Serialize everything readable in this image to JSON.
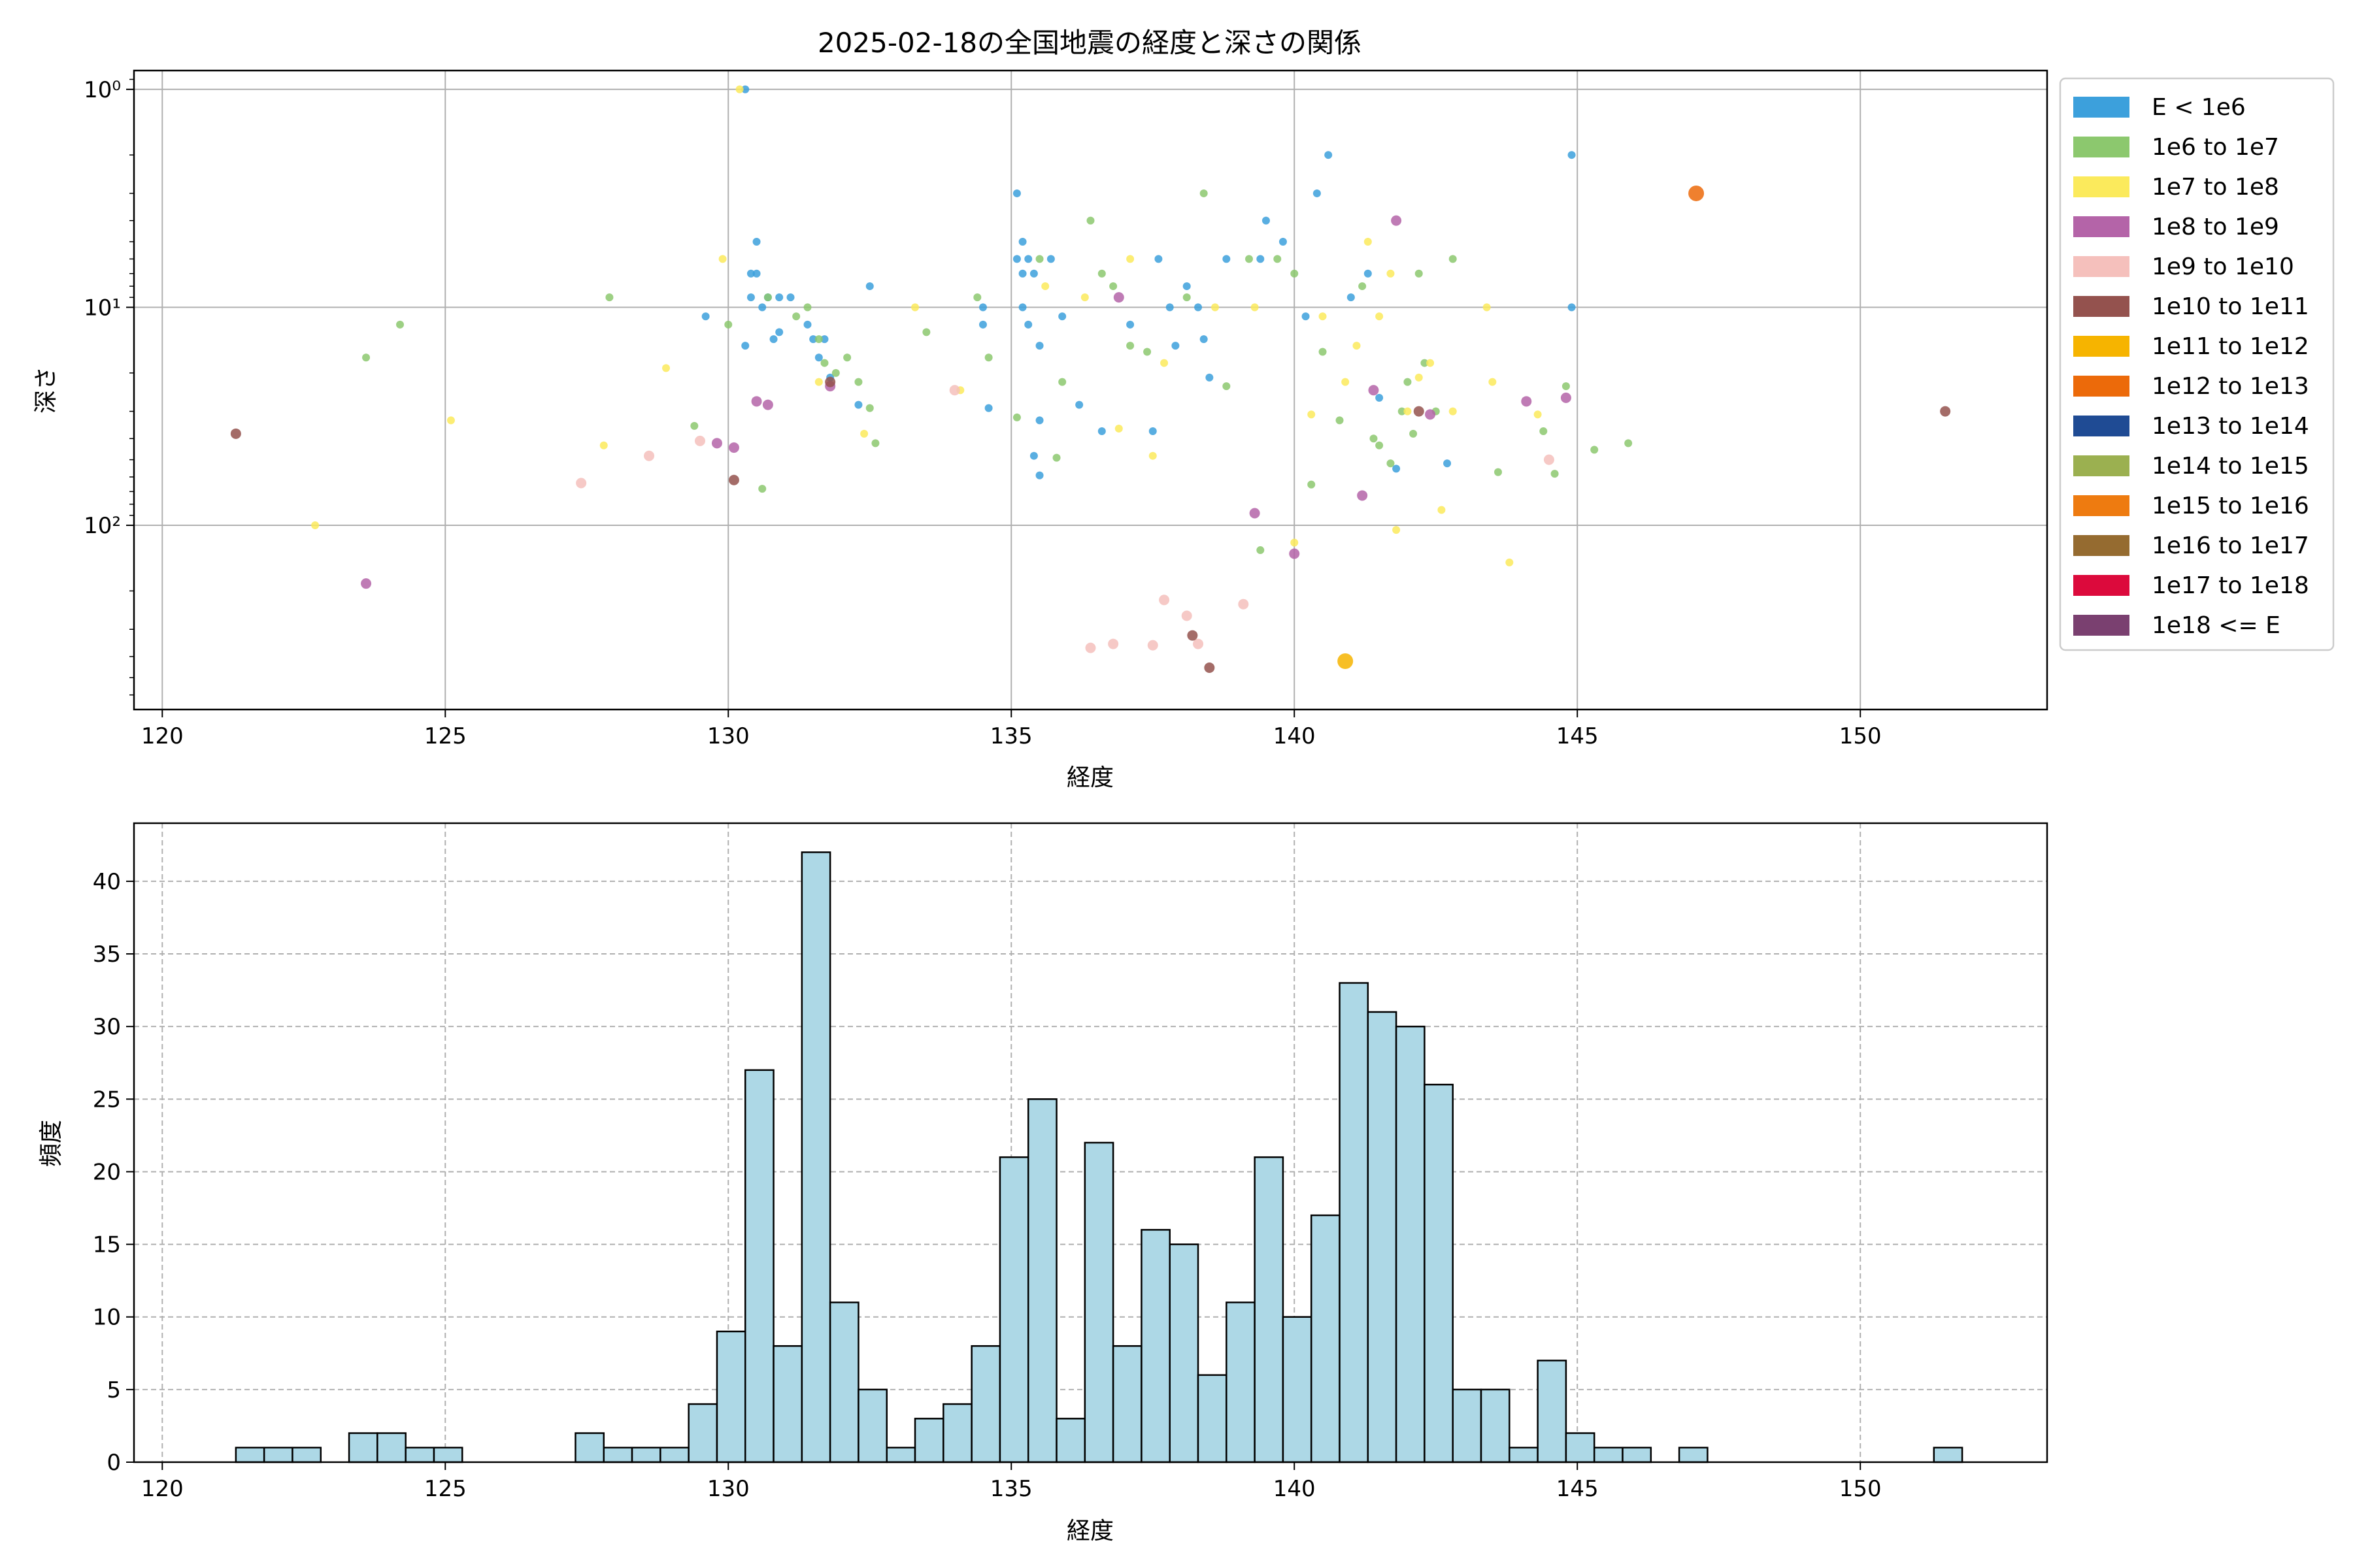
{
  "figure_title": "2025-02-18の全国地震の経度と深さの関係",
  "chart_data": [
    {
      "type": "scatter",
      "title": "2025-02-18の全国地震の経度と深さの関係",
      "xlabel": "経度",
      "ylabel": "深さ",
      "xlim": [
        119.5,
        153.3
      ],
      "ylim": [
        700,
        0.82
      ],
      "yscale": "log",
      "y_inverted": true,
      "grid": true,
      "xticks": [
        120,
        125,
        130,
        135,
        140,
        145,
        150
      ],
      "yticks": [
        {
          "value": 1,
          "label": "10⁰"
        },
        {
          "value": 10,
          "label": "10¹"
        },
        {
          "value": 100,
          "label": "10²"
        }
      ],
      "legend_position": "outside-right",
      "legend": [
        {
          "label": "E < 1e6",
          "color": "#3ca0dc"
        },
        {
          "label": "1e6 to 1e7",
          "color": "#8cc86e"
        },
        {
          "label": "1e7 to 1e8",
          "color": "#fbea5c"
        },
        {
          "label": "1e8 to 1e9",
          "color": "#b464a8"
        },
        {
          "label": "1e9 to 1e10",
          "color": "#f5c0bc"
        },
        {
          "label": "1e10 to 1e11",
          "color": "#94524e"
        },
        {
          "label": "1e11 to 1e12",
          "color": "#f6b400"
        },
        {
          "label": "1e12 to 1e13",
          "color": "#ec6a0a"
        },
        {
          "label": "1e13 to 1e14",
          "color": "#1f4b94"
        },
        {
          "label": "1e14 to 1e15",
          "color": "#9bb050"
        },
        {
          "label": "1e15 to 1e16",
          "color": "#ee7b10"
        },
        {
          "label": "1e16 to 1e17",
          "color": "#956b30"
        },
        {
          "label": "1e17 to 1e18",
          "color": "#dc0a3c"
        },
        {
          "label": "1e18 <= E",
          "color": "#7a4070"
        }
      ],
      "series": [
        {
          "color": "#3ca0dc",
          "points": [
            [
              130.3,
              1
            ],
            [
              129.6,
              11
            ],
            [
              130.3,
              15
            ],
            [
              130.4,
              7
            ],
            [
              130.4,
              9
            ],
            [
              130.5,
              5
            ],
            [
              130.5,
              7
            ],
            [
              130.6,
              10
            ],
            [
              130.7,
              9
            ],
            [
              130.8,
              14
            ],
            [
              130.9,
              9
            ],
            [
              130.9,
              13
            ],
            [
              131.1,
              9
            ],
            [
              131.4,
              12
            ],
            [
              131.5,
              14
            ],
            [
              131.6,
              17
            ],
            [
              131.7,
              14
            ],
            [
              131.8,
              21
            ],
            [
              132.3,
              28
            ],
            [
              132.5,
              8
            ],
            [
              134.5,
              10
            ],
            [
              134.5,
              12
            ],
            [
              134.6,
              29
            ],
            [
              135.1,
              3
            ],
            [
              135.1,
              6
            ],
            [
              135.2,
              7
            ],
            [
              135.2,
              5
            ],
            [
              135.2,
              10
            ],
            [
              135.3,
              12
            ],
            [
              135.3,
              6
            ],
            [
              135.4,
              7
            ],
            [
              135.5,
              15
            ],
            [
              135.5,
              33
            ],
            [
              135.4,
              48
            ],
            [
              135.5,
              59
            ],
            [
              135.9,
              11
            ],
            [
              135.7,
              6
            ],
            [
              136.2,
              28
            ],
            [
              136.6,
              37
            ],
            [
              137.1,
              12
            ],
            [
              137.5,
              37
            ],
            [
              137.6,
              6
            ],
            [
              137.8,
              10
            ],
            [
              137.9,
              15
            ],
            [
              138.1,
              8
            ],
            [
              138.3,
              10
            ],
            [
              138.4,
              14
            ],
            [
              138.5,
              21
            ],
            [
              138.8,
              6
            ],
            [
              139.4,
              6
            ],
            [
              139.5,
              4
            ],
            [
              139.8,
              5
            ],
            [
              140.2,
              11
            ],
            [
              140.4,
              3
            ],
            [
              140.6,
              2
            ],
            [
              141.0,
              9
            ],
            [
              141.3,
              7
            ],
            [
              141.5,
              26
            ],
            [
              141.8,
              55
            ],
            [
              142.7,
              52
            ],
            [
              144.9,
              2
            ],
            [
              144.9,
              10
            ]
          ]
        },
        {
          "color": "#8cc86e",
          "points": [
            [
              123.6,
              17
            ],
            [
              124.2,
              12
            ],
            [
              127.9,
              9
            ],
            [
              129.4,
              35
            ],
            [
              130.0,
              12
            ],
            [
              130.6,
              68
            ],
            [
              130.7,
              9
            ],
            [
              131.2,
              11
            ],
            [
              131.4,
              10
            ],
            [
              131.6,
              14
            ],
            [
              131.7,
              18
            ],
            [
              131.9,
              20
            ],
            [
              132.1,
              17
            ],
            [
              132.3,
              22
            ],
            [
              132.5,
              29
            ],
            [
              132.6,
              42
            ],
            [
              133.5,
              13
            ],
            [
              134.4,
              9
            ],
            [
              134.6,
              17
            ],
            [
              135.1,
              32
            ],
            [
              135.5,
              6
            ],
            [
              135.8,
              49
            ],
            [
              135.9,
              22
            ],
            [
              136.4,
              4
            ],
            [
              136.6,
              7
            ],
            [
              136.8,
              8
            ],
            [
              137.1,
              15
            ],
            [
              137.4,
              16
            ],
            [
              138.1,
              9
            ],
            [
              138.4,
              3
            ],
            [
              138.8,
              23
            ],
            [
              139.2,
              6
            ],
            [
              139.4,
              130
            ],
            [
              139.7,
              6
            ],
            [
              140.0,
              7
            ],
            [
              140.3,
              65
            ],
            [
              140.5,
              16
            ],
            [
              140.8,
              33
            ],
            [
              141.2,
              8
            ],
            [
              141.4,
              40
            ],
            [
              141.5,
              43
            ],
            [
              141.7,
              52
            ],
            [
              141.9,
              30
            ],
            [
              142.0,
              22
            ],
            [
              142.1,
              38
            ],
            [
              142.2,
              7
            ],
            [
              142.3,
              18
            ],
            [
              142.5,
              30
            ],
            [
              142.8,
              6
            ],
            [
              143.6,
              57
            ],
            [
              144.4,
              37
            ],
            [
              144.6,
              58
            ],
            [
              144.8,
              23
            ],
            [
              145.3,
              45
            ],
            [
              145.9,
              42
            ]
          ]
        },
        {
          "color": "#fbea5c",
          "points": [
            [
              122.7,
              100
            ],
            [
              125.1,
              33
            ],
            [
              127.8,
              43
            ],
            [
              128.9,
              19
            ],
            [
              129.9,
              6
            ],
            [
              130.2,
              1
            ],
            [
              131.6,
              22
            ],
            [
              132.4,
              38
            ],
            [
              133.3,
              10
            ],
            [
              134.1,
              24
            ],
            [
              135.6,
              8
            ],
            [
              136.3,
              9
            ],
            [
              136.9,
              36
            ],
            [
              137.1,
              6
            ],
            [
              137.5,
              48
            ],
            [
              137.7,
              18
            ],
            [
              138.6,
              10
            ],
            [
              139.3,
              10
            ],
            [
              140.0,
              120
            ],
            [
              140.3,
              31
            ],
            [
              140.5,
              11
            ],
            [
              140.9,
              22
            ],
            [
              141.1,
              15
            ],
            [
              141.3,
              5
            ],
            [
              141.5,
              11
            ],
            [
              141.7,
              7
            ],
            [
              141.8,
              105
            ],
            [
              142.0,
              30
            ],
            [
              142.2,
              21
            ],
            [
              142.4,
              18
            ],
            [
              142.6,
              85
            ],
            [
              142.8,
              30
            ],
            [
              143.4,
              10
            ],
            [
              143.5,
              22
            ],
            [
              143.8,
              148
            ],
            [
              144.3,
              31
            ]
          ]
        },
        {
          "color": "#b464a8",
          "points": [
            [
              123.6,
              185
            ],
            [
              129.8,
              42
            ],
            [
              130.1,
              44
            ],
            [
              130.5,
              27
            ],
            [
              130.7,
              28
            ],
            [
              131.8,
              23
            ],
            [
              136.9,
              9
            ],
            [
              139.3,
              88
            ],
            [
              140.0,
              135
            ],
            [
              141.2,
              73
            ],
            [
              141.4,
              24
            ],
            [
              141.8,
              4
            ],
            [
              142.4,
              31
            ],
            [
              144.1,
              27
            ],
            [
              144.8,
              26
            ]
          ]
        },
        {
          "color": "#f5c0bc",
          "points": [
            [
              127.4,
              64
            ],
            [
              128.6,
              48
            ],
            [
              129.5,
              41
            ],
            [
              134.0,
              24
            ],
            [
              136.4,
              365
            ],
            [
              136.8,
              350
            ],
            [
              137.5,
              355
            ],
            [
              137.7,
              220
            ],
            [
              138.1,
              260
            ],
            [
              138.3,
              350
            ],
            [
              139.1,
              230
            ],
            [
              144.5,
              50
            ]
          ]
        },
        {
          "color": "#94524e",
          "points": [
            [
              121.3,
              38
            ],
            [
              130.1,
              62
            ],
            [
              131.8,
              22
            ],
            [
              138.2,
              320
            ],
            [
              138.5,
              450
            ],
            [
              142.2,
              30
            ],
            [
              151.5,
              30
            ]
          ]
        },
        {
          "color": "#f6b400",
          "points": [
            [
              140.9,
              420
            ]
          ]
        },
        {
          "color": "#ec6a0a",
          "points": [
            [
              147.1,
              3
            ]
          ]
        }
      ]
    },
    {
      "type": "bar",
      "subtype": "histogram",
      "xlabel": "経度",
      "ylabel": "頻度",
      "xlim": [
        119.5,
        153.3
      ],
      "ylim": [
        0,
        44
      ],
      "grid": true,
      "grid_style": "dashed",
      "xticks": [
        120,
        125,
        130,
        135,
        140,
        145,
        150
      ],
      "yticks": [
        0,
        5,
        10,
        15,
        20,
        25,
        30,
        35,
        40
      ],
      "bar_color": "#add8e6",
      "bar_edge_color": "#000000",
      "bin_start": 121.3,
      "bin_width": 0.5,
      "values": [
        1,
        1,
        1,
        0,
        2,
        2,
        1,
        1,
        0,
        0,
        0,
        0,
        2,
        1,
        1,
        1,
        4,
        9,
        27,
        8,
        42,
        11,
        5,
        1,
        3,
        4,
        8,
        21,
        25,
        3,
        22,
        8,
        16,
        15,
        6,
        11,
        21,
        10,
        17,
        33,
        31,
        30,
        26,
        5,
        5,
        1,
        7,
        2,
        1,
        1,
        0,
        1,
        0,
        0,
        0,
        0,
        0,
        0,
        0,
        0,
        1
      ]
    }
  ]
}
